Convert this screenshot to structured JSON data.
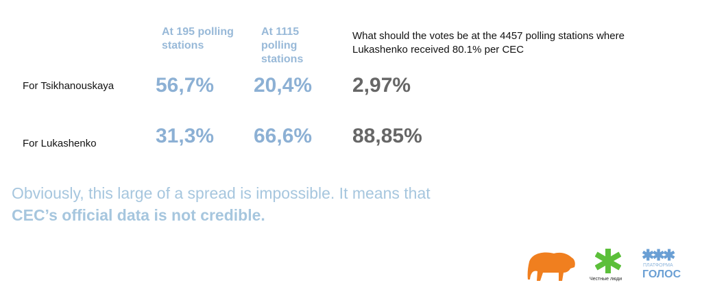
{
  "columns": [
    {
      "label": "At 195 polling stations"
    },
    {
      "label": "At 1115 polling stations"
    },
    {
      "label": "What should the votes be at the 4457 polling stations where Lukashenko received 80.1% per CEC"
    }
  ],
  "rows": [
    {
      "label": "For Tsikhanouskaya",
      "values": [
        "56,7%",
        "20,4%",
        "2,97%"
      ]
    },
    {
      "label": "For Lukashenko",
      "values": [
        "31,3%",
        "66,6%",
        "88,85%"
      ]
    }
  ],
  "conclusion": {
    "line1": "Obviously, this large of a spread is impossible. It means that",
    "line2": "CEC’s official data is not credible."
  },
  "logos": {
    "honest_people": "Честные люди",
    "platform_top": "ПЛАТФОРМА",
    "platform_bottom": "ГОЛОС"
  },
  "colors": {
    "blue": "#8cb0d4",
    "gray": "#666666",
    "conclusion": "#a6c6de",
    "bison": "#f07f1f",
    "asterisk_green": "#5cbf3a",
    "platform_blue": "#6a9fd4"
  }
}
